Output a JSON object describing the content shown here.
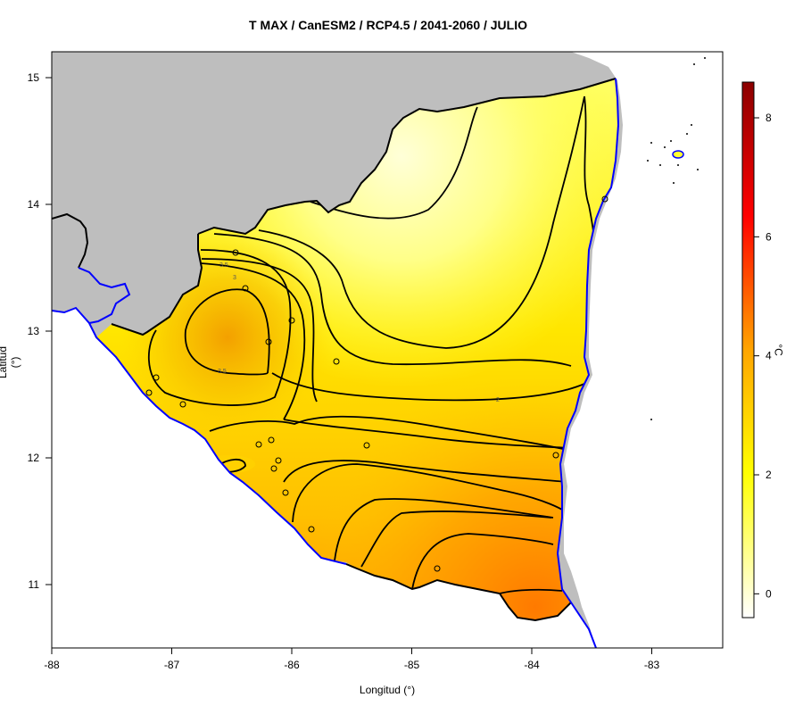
{
  "title": "T MAX / CanESM2 / RCP4.5 / 2041-2060 / JULIO",
  "x_axis": {
    "label": "Longitud (°)",
    "ticks": [
      {
        "value": -88,
        "label": "-88"
      },
      {
        "value": -87,
        "label": "-87"
      },
      {
        "value": -86,
        "label": "-86"
      },
      {
        "value": -85,
        "label": "-85"
      },
      {
        "value": -84,
        "label": "-84"
      },
      {
        "value": -83,
        "label": "-83"
      }
    ]
  },
  "y_axis": {
    "label": "Latitud (°)",
    "ticks": [
      {
        "value": 11,
        "label": "11"
      },
      {
        "value": 12,
        "label": "12"
      },
      {
        "value": 13,
        "label": "13"
      },
      {
        "value": 14,
        "label": "14"
      },
      {
        "value": 15,
        "label": "15"
      }
    ]
  },
  "colorbar": {
    "unit": "°C",
    "range": [
      -0.4,
      8.6
    ],
    "ticks": [
      {
        "value": 0,
        "label": "0"
      },
      {
        "value": 2,
        "label": "2"
      },
      {
        "value": 4,
        "label": "4"
      },
      {
        "value": 6,
        "label": "6"
      },
      {
        "value": 8,
        "label": "8"
      }
    ]
  },
  "contour_labels": [
    {
      "text": "3.5"
    },
    {
      "text": "3"
    },
    {
      "text": "3.5"
    },
    {
      "text": "2"
    }
  ],
  "colors": {
    "land_outside": "#bebebe",
    "coastline": "#0000ff",
    "border": "#000000",
    "scale": [
      "#ffffff",
      "#ffff00",
      "#ffa500",
      "#ff0000",
      "#8b0000"
    ]
  }
}
